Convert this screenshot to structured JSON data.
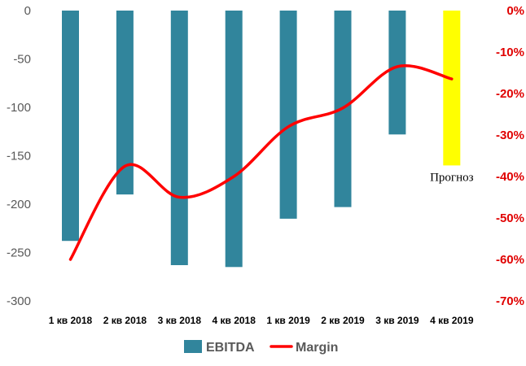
{
  "chart_data": {
    "type": "bar",
    "categories": [
      "1 кв 2018",
      "2 кв 2018",
      "3 кв 2018",
      "4 кв 2018",
      "1 кв 2019",
      "2 кв 2019",
      "3 кв 2019",
      "4 кв 2019"
    ],
    "series": [
      {
        "name": "EBITDA",
        "type": "bar",
        "axis": "left",
        "values": [
          -238,
          -190,
          -263,
          -265,
          -215,
          -203,
          -128,
          -160
        ],
        "color": "#31859c",
        "forecast_index": 7,
        "forecast_color": "#ffff00"
      },
      {
        "name": "Margin",
        "type": "line",
        "axis": "right",
        "values": [
          -60,
          -37.5,
          -45,
          -40,
          -28,
          -23.5,
          -13.5,
          -16.5
        ],
        "color": "#ff0000"
      }
    ],
    "y_left": {
      "ylim": [
        -300,
        0
      ],
      "ticks": [
        "0",
        "-50",
        "-100",
        "-150",
        "-200",
        "-250",
        "-300"
      ],
      "color": "#595959"
    },
    "y_right": {
      "ylim": [
        -70,
        0
      ],
      "ticks": [
        "0%",
        "-10%",
        "-20%",
        "-30%",
        "-40%",
        "-50%",
        "-60%",
        "-70%"
      ],
      "color": "#e00000"
    },
    "annotation": "Прогноз",
    "grid": false,
    "legend_position": "bottom"
  }
}
